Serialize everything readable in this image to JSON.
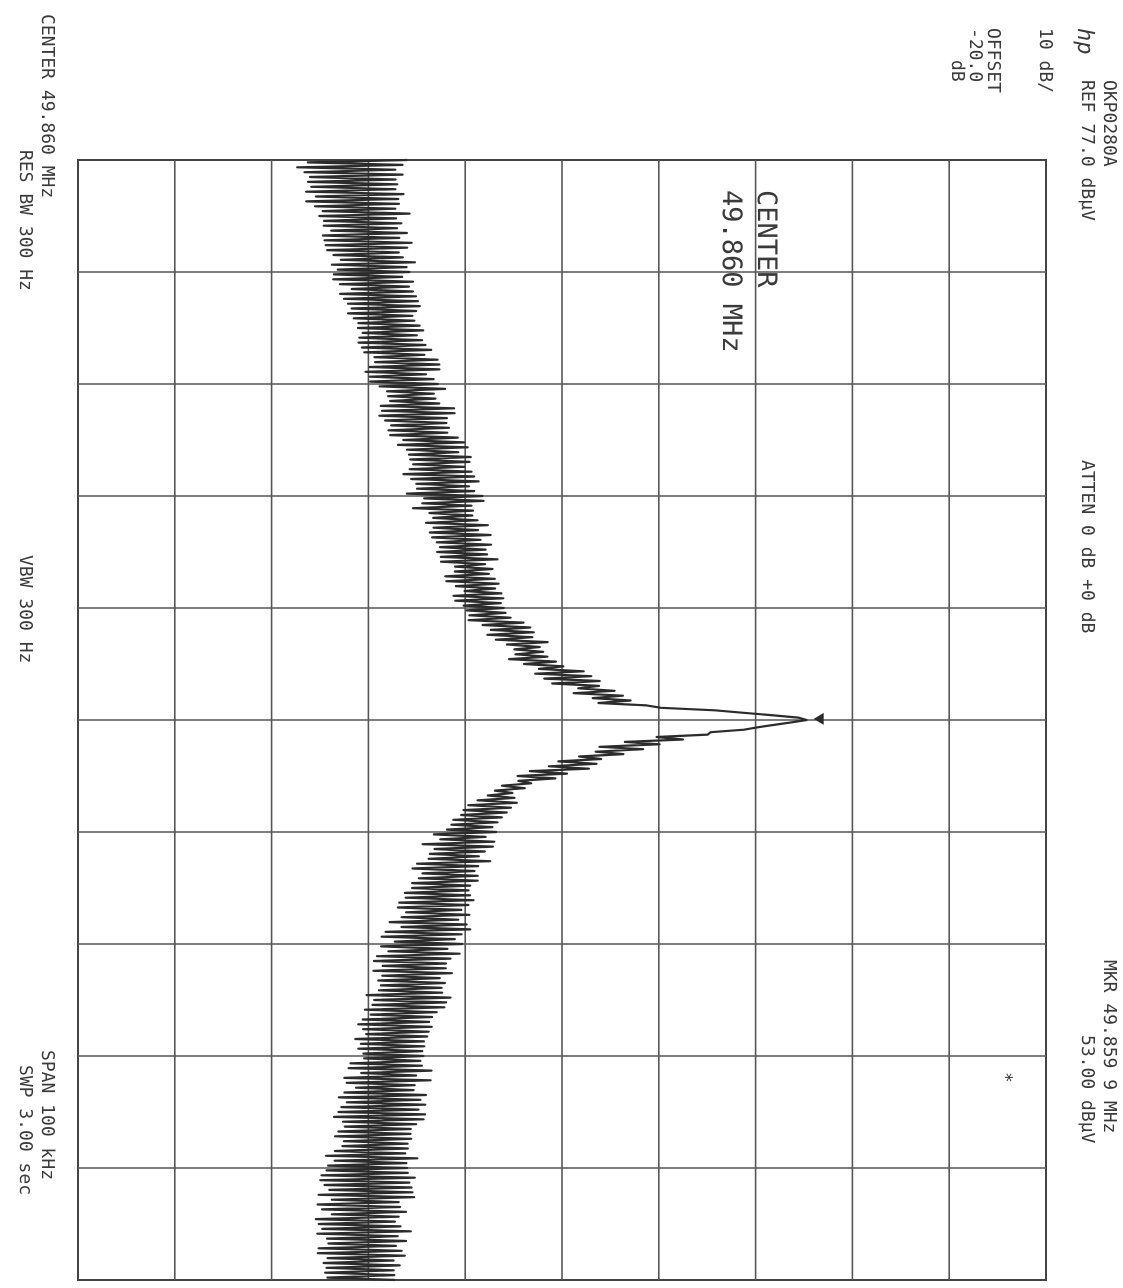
{
  "header": {
    "brand": "hp",
    "id": "OKP0280A",
    "ref": "REF  77.0 dBµV",
    "atten": "ATTEN 0 dB  +0 dB",
    "scale": "10 dB/",
    "offset_label": "OFFSET",
    "offset_value": "-20.0",
    "offset_unit": "dB",
    "marker_freq": "MKR 49.859 9 MHz",
    "marker_level": "53.00 dBµV",
    "marker_symbol": "*"
  },
  "annotation": {
    "line1": "CENTER",
    "line2": "49.860 MHz"
  },
  "footer": {
    "center": "CENTER 49.860 MHz",
    "span": "SPAN 100 kHz",
    "res_bw": "RES BW 300  Hz",
    "vbw": "VBW 300  Hz",
    "swp": "SWP 3.00  sec"
  },
  "colors": {
    "ink": "#2b2b2b",
    "grid": "#555555",
    "paper": "#ffffff"
  },
  "chart_data": {
    "type": "line",
    "title": "",
    "xlabel": "",
    "ylabel": "",
    "x_unit": "MHz",
    "y_unit": "dBµV",
    "xlim": [
      49.81,
      49.91
    ],
    "ylim": [
      -23,
      77
    ],
    "grid": true,
    "orientation": "rotated 90° clockwise (frequency runs top to bottom, level increases to the right)",
    "marker": {
      "x": 49.8599,
      "y": 53.0
    },
    "series": [
      {
        "envelope_top": {
          "x": [
            49.81,
            49.82,
            49.83,
            49.84,
            49.85,
            49.855,
            49.8585,
            49.8599,
            49.862,
            49.866,
            49.87,
            49.88,
            49.89,
            49.9,
            49.91
          ],
          "y": [
            11,
            12,
            15,
            19,
            22,
            28,
            35,
            53,
            38,
            24,
            21,
            17,
            14,
            12,
            11
          ]
        },
        "envelope_bottom": {
          "x": [
            49.81,
            49.82,
            49.83,
            49.84,
            49.85,
            49.855,
            49.8585,
            49.8599,
            49.862,
            49.866,
            49.87,
            49.88,
            49.89,
            49.9,
            49.91
          ],
          "y": [
            -1,
            3,
            7,
            11,
            16,
            22,
            30,
            52,
            32,
            19,
            13,
            8,
            5,
            2,
            1
          ]
        },
        "peak": {
          "x": 49.8599,
          "y": 53.0
        }
      }
    ]
  }
}
